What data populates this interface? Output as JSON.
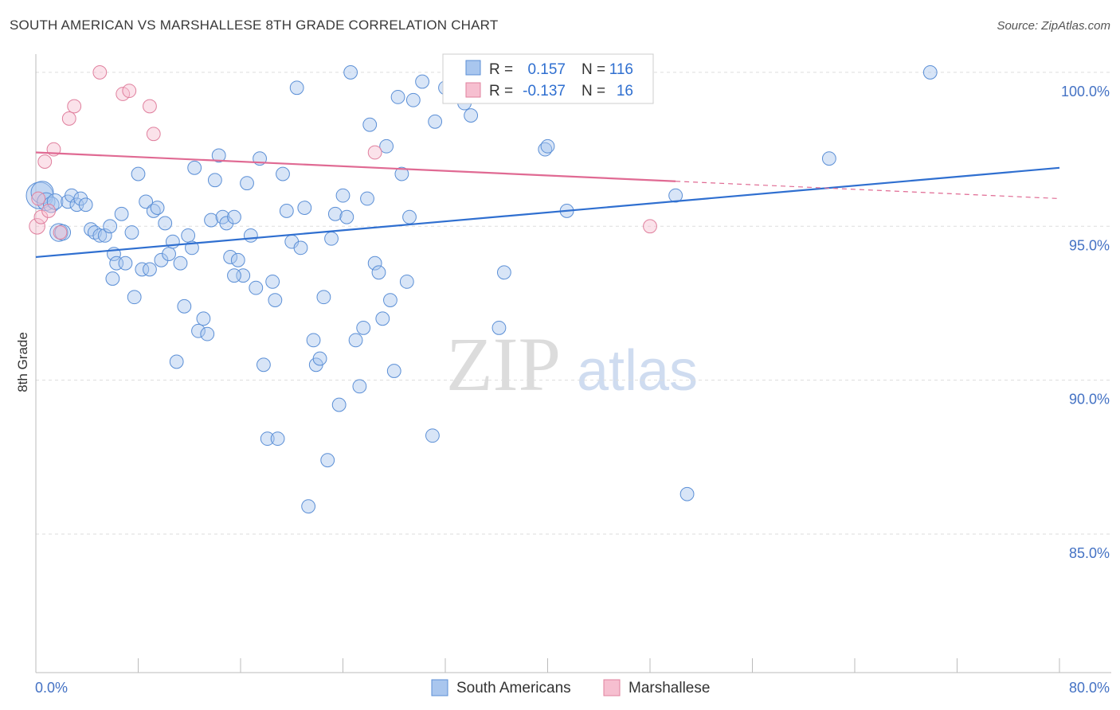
{
  "header": {
    "title": "SOUTH AMERICAN VS MARSHALLESE 8TH GRADE CORRELATION CHART",
    "source": "Source: ZipAtlas.com"
  },
  "watermark": {
    "zip": "ZIP",
    "atlas": "atlas"
  },
  "colors": {
    "blue_fill": "#a9c6ee",
    "blue_stroke": "#5b8fd6",
    "blue_line": "#2f6fd0",
    "pink_fill": "#f6bfd0",
    "pink_stroke": "#e0809e",
    "pink_line": "#e06a93",
    "tick_label": "#4472c4",
    "grid": "#dddddd"
  },
  "stats_legend": {
    "rows": [
      {
        "r_label": "R =",
        "r_value": "0.157",
        "n_label": "N =",
        "n_value": "116"
      },
      {
        "r_label": "R =",
        "r_value": "-0.137",
        "n_label": "N =",
        "n_value": "16"
      }
    ]
  },
  "chart_data": {
    "type": "scatter",
    "title": "SOUTH AMERICAN VS MARSHALLESE 8TH GRADE CORRELATION CHART",
    "ylabel": "8th Grade",
    "xlim": [
      0,
      80
    ],
    "ylim": [
      80.5,
      100.8
    ],
    "x_tick_labels": [
      "0.0%",
      "80.0%"
    ],
    "y_ticks": [
      85,
      90,
      95,
      100
    ],
    "y_tick_labels": [
      "85.0%",
      "90.0%",
      "95.0%",
      "100.0%"
    ],
    "legend_placement": "bottom-center",
    "series": [
      {
        "name": "South Americans",
        "color": "#5b8fd6",
        "trend": {
          "x0": 0,
          "y0": 94.0,
          "x1": 80,
          "y1": 96.9,
          "dashed_from": null
        },
        "points": [
          [
            0.3,
            96.0,
            12
          ],
          [
            0.5,
            96.1,
            10
          ],
          [
            0.8,
            95.8,
            8
          ],
          [
            1.2,
            95.7,
            7
          ],
          [
            1.5,
            95.8,
            7
          ],
          [
            1.8,
            94.8,
            8
          ],
          [
            2.1,
            94.8,
            7
          ],
          [
            2.5,
            95.8,
            6
          ],
          [
            2.8,
            96.0,
            6
          ],
          [
            3.2,
            95.7,
            6
          ],
          [
            3.5,
            95.9,
            6
          ],
          [
            3.9,
            95.7,
            6
          ],
          [
            4.3,
            94.9,
            6
          ],
          [
            4.6,
            94.8,
            6
          ],
          [
            5.0,
            94.7,
            6
          ],
          [
            5.4,
            94.7,
            6
          ],
          [
            5.8,
            95.0,
            6
          ],
          [
            6.1,
            94.1,
            6
          ],
          [
            6.3,
            93.8,
            6
          ],
          [
            6.7,
            95.4,
            6
          ],
          [
            7.0,
            93.8,
            6
          ],
          [
            7.5,
            94.8,
            6
          ],
          [
            7.7,
            92.7,
            6
          ],
          [
            8.0,
            96.7,
            6
          ],
          [
            8.3,
            93.6,
            6
          ],
          [
            8.6,
            95.8,
            6
          ],
          [
            8.9,
            93.6,
            6
          ],
          [
            9.2,
            95.5,
            6
          ],
          [
            9.5,
            95.6,
            6
          ],
          [
            9.8,
            93.9,
            6
          ],
          [
            10.1,
            95.1,
            6
          ],
          [
            10.4,
            94.1,
            6
          ],
          [
            10.7,
            94.5,
            6
          ],
          [
            11.0,
            90.6,
            6
          ],
          [
            11.3,
            93.8,
            6
          ],
          [
            11.6,
            92.4,
            6
          ],
          [
            11.9,
            94.7,
            6
          ],
          [
            12.2,
            94.3,
            6
          ],
          [
            12.4,
            96.9,
            6
          ],
          [
            12.7,
            91.6,
            6
          ],
          [
            13.1,
            92.0,
            6
          ],
          [
            13.4,
            91.5,
            6
          ],
          [
            13.7,
            95.2,
            6
          ],
          [
            14.0,
            96.5,
            6
          ],
          [
            14.3,
            97.3,
            6
          ],
          [
            14.6,
            95.3,
            6
          ],
          [
            14.9,
            95.1,
            6
          ],
          [
            15.2,
            94.0,
            6
          ],
          [
            15.5,
            95.3,
            6
          ],
          [
            15.8,
            93.9,
            6
          ],
          [
            16.2,
            93.4,
            6
          ],
          [
            16.5,
            96.4,
            6
          ],
          [
            16.8,
            94.7,
            6
          ],
          [
            17.2,
            93.0,
            6
          ],
          [
            17.5,
            97.2,
            6
          ],
          [
            17.8,
            90.5,
            6
          ],
          [
            18.1,
            88.1,
            6
          ],
          [
            18.5,
            93.2,
            6
          ],
          [
            18.7,
            92.6,
            6
          ],
          [
            18.9,
            88.1,
            6
          ],
          [
            19.3,
            96.7,
            6
          ],
          [
            19.6,
            95.5,
            6
          ],
          [
            20.0,
            94.5,
            6
          ],
          [
            20.4,
            99.5,
            6
          ],
          [
            20.7,
            94.3,
            6
          ],
          [
            21.0,
            95.6,
            6
          ],
          [
            21.3,
            85.9,
            6
          ],
          [
            21.7,
            91.3,
            6
          ],
          [
            21.9,
            90.5,
            6
          ],
          [
            22.2,
            90.7,
            6
          ],
          [
            22.5,
            92.7,
            6
          ],
          [
            22.8,
            87.4,
            6
          ],
          [
            23.1,
            94.6,
            6
          ],
          [
            23.4,
            95.4,
            6
          ],
          [
            23.7,
            89.2,
            6
          ],
          [
            24.0,
            96.0,
            6
          ],
          [
            24.3,
            95.3,
            6
          ],
          [
            24.6,
            100.0,
            6
          ],
          [
            25.0,
            91.3,
            6
          ],
          [
            25.3,
            89.8,
            6
          ],
          [
            25.6,
            91.7,
            6
          ],
          [
            25.9,
            95.9,
            6
          ],
          [
            26.1,
            98.3,
            6
          ],
          [
            26.5,
            93.8,
            6
          ],
          [
            26.8,
            93.5,
            6
          ],
          [
            27.1,
            92.0,
            6
          ],
          [
            27.4,
            97.6,
            6
          ],
          [
            27.7,
            92.6,
            6
          ],
          [
            28.0,
            90.3,
            6
          ],
          [
            28.3,
            99.2,
            6
          ],
          [
            28.6,
            96.7,
            6
          ],
          [
            29.0,
            93.2,
            6
          ],
          [
            29.2,
            95.3,
            6
          ],
          [
            29.5,
            99.1,
            6
          ],
          [
            30.2,
            99.7,
            6
          ],
          [
            31.0,
            88.2,
            6
          ],
          [
            31.2,
            98.4,
            6
          ],
          [
            32.0,
            99.5,
            6
          ],
          [
            32.5,
            100.0,
            6
          ],
          [
            33.5,
            99.0,
            6
          ],
          [
            34.0,
            98.6,
            6
          ],
          [
            35.0,
            99.7,
            6
          ],
          [
            36.2,
            91.7,
            6
          ],
          [
            36.6,
            93.5,
            6
          ],
          [
            39.8,
            97.5,
            6
          ],
          [
            40.0,
            97.6,
            6
          ],
          [
            41.5,
            95.5,
            6
          ],
          [
            50.0,
            96.0,
            6
          ],
          [
            50.9,
            86.3,
            6
          ],
          [
            62.0,
            97.2,
            6
          ],
          [
            69.9,
            100.0,
            6
          ],
          [
            39.0,
            100.0,
            6
          ],
          [
            6.0,
            93.3,
            6
          ],
          [
            15.5,
            93.4,
            6
          ]
        ]
      },
      {
        "name": "Marshallese",
        "color": "#e0809e",
        "trend": {
          "x0": 0,
          "y0": 97.4,
          "x1": 80,
          "y1": 95.9,
          "dashed_from": 50
        },
        "points": [
          [
            0.1,
            95.0,
            7
          ],
          [
            0.4,
            95.3,
            6
          ],
          [
            0.7,
            97.1,
            6
          ],
          [
            1.0,
            95.5,
            6
          ],
          [
            1.4,
            97.5,
            6
          ],
          [
            1.9,
            94.8,
            6
          ],
          [
            2.6,
            98.5,
            6
          ],
          [
            3.0,
            98.9,
            6
          ],
          [
            5.0,
            100.0,
            6
          ],
          [
            6.8,
            99.3,
            6
          ],
          [
            7.3,
            99.4,
            6
          ],
          [
            8.9,
            98.9,
            6
          ],
          [
            9.2,
            98.0,
            6
          ],
          [
            26.5,
            97.4,
            6
          ],
          [
            48.0,
            95.0,
            6
          ],
          [
            0.2,
            95.9,
            6
          ]
        ]
      }
    ]
  }
}
